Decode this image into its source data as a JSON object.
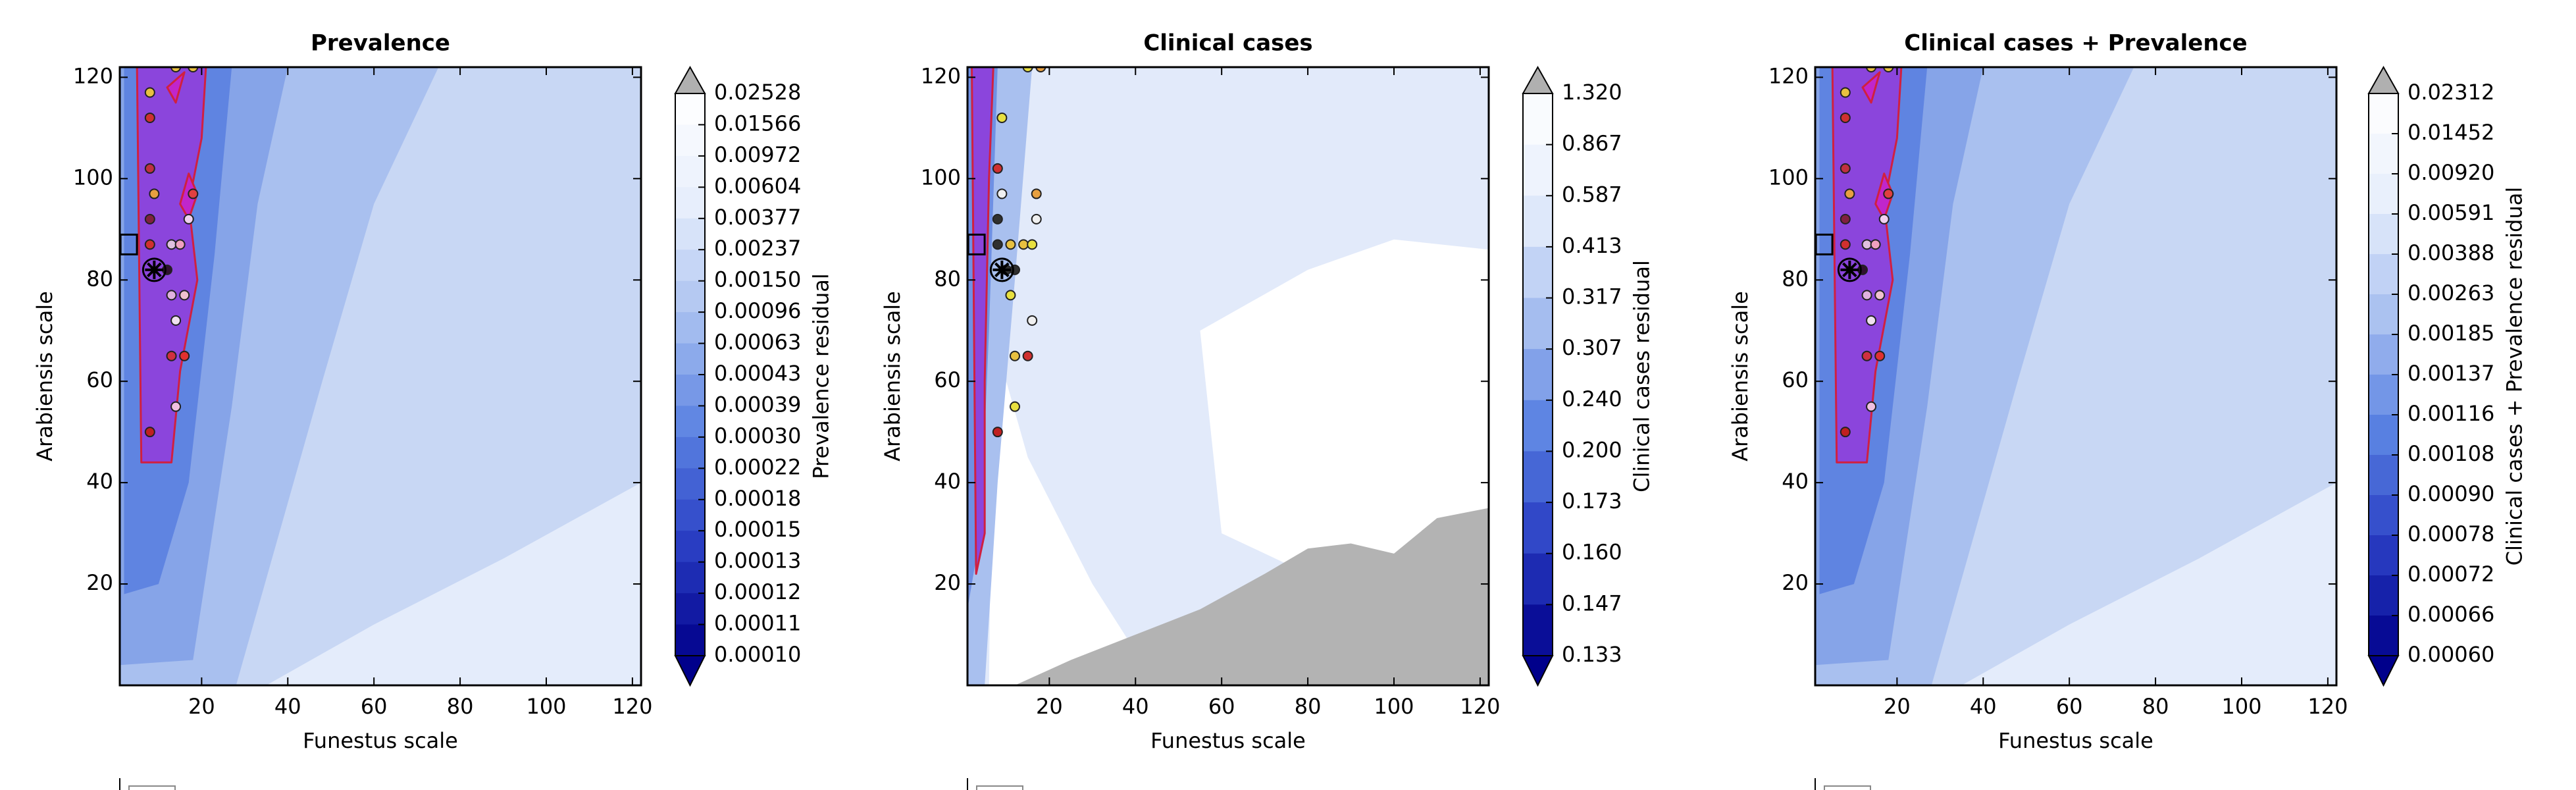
{
  "chart_data": [
    {
      "type": "contour",
      "title": "Prevalence",
      "x_label": "Funestus scale",
      "y_label": "Arabiensis scale",
      "xlim": [
        1,
        122
      ],
      "ylim": [
        0,
        122
      ],
      "xticks": [
        20,
        40,
        60,
        80,
        100,
        120
      ],
      "yticks": [
        20,
        40,
        60,
        80,
        100,
        120
      ],
      "points": {
        "x": [
          8,
          8,
          8,
          9,
          8,
          8,
          12,
          13,
          15,
          17,
          18,
          13,
          16,
          14,
          13,
          16,
          14,
          8,
          14,
          18
        ],
        "y": [
          117,
          112,
          102,
          97,
          92,
          87,
          82,
          87,
          87,
          92,
          97,
          77,
          77,
          72,
          65,
          65,
          55,
          50,
          122,
          122
        ],
        "colors": [
          "#e8c040",
          "#d03030",
          "#c03040",
          "#e8a040",
          "#802040",
          "#d03030",
          "#301030",
          "#e0c0e0",
          "#f0a0c0",
          "#f0d0f0",
          "#e04040",
          "#e0b0e0",
          "#f0c0d0",
          "#f0e0f0",
          "#d03040",
          "#e03030",
          "#f0c0e0",
          "#c02020",
          "#e8c040",
          "#e8c040"
        ]
      },
      "best_fit": {
        "x": 9,
        "y": 82
      },
      "reference": {
        "x": 3,
        "y": 87
      },
      "colorbar": {
        "label": "Prevalence residual",
        "ticks": [
          0.02528,
          0.01566,
          0.00972,
          0.00604,
          0.00377,
          0.00237,
          {
            "value": 0.0015,
            "label": "0.00150"
          },
          0.00096,
          0.00063,
          0.00043,
          0.00039,
          {
            "value": 0.0003,
            "label": "0.00030"
          },
          0.00022,
          0.00018,
          0.00015,
          0.00013,
          0.00012,
          0.00011,
          {
            "value": 0.0001,
            "label": "0.00010"
          }
        ],
        "colormap": [
          "#00008b",
          "#2a3fc4",
          "#5a82e2",
          "#a9c0f0",
          "#e6eefc",
          "#ffffff"
        ],
        "over_color": "#b0b0b0"
      }
    },
    {
      "type": "contour",
      "title": "Clinical cases",
      "x_label": "Funestus scale",
      "y_label": "Arabiensis scale",
      "xlim": [
        1,
        122
      ],
      "ylim": [
        0,
        122
      ],
      "xticks": [
        20,
        40,
        60,
        80,
        100,
        120
      ],
      "yticks": [
        20,
        40,
        60,
        80,
        100,
        120
      ],
      "points": {
        "x": [
          9,
          8,
          9,
          8,
          8,
          11,
          14,
          16,
          17,
          17,
          10,
          12,
          11,
          16,
          12,
          15,
          12,
          8,
          15,
          18
        ],
        "y": [
          112,
          102,
          97,
          92,
          87,
          87,
          87,
          87,
          97,
          92,
          82,
          82,
          77,
          72,
          65,
          65,
          55,
          50,
          122,
          122
        ],
        "colors": [
          "#e8e040",
          "#d03030",
          "#f0f0f0",
          "#303030",
          "#303030",
          "#e8c040",
          "#e8c040",
          "#e8e040",
          "#e8a040",
          "#f0f0f0",
          "#303030",
          "#303030",
          "#e8e040",
          "#f0f0f0",
          "#e8c040",
          "#d03030",
          "#e8e040",
          "#c02020",
          "#e8e040",
          "#e8a040"
        ]
      },
      "best_fit": {
        "x": 9,
        "y": 82
      },
      "reference": {
        "x": 3,
        "y": 87
      },
      "colorbar": {
        "label": "Clinical cases residual",
        "ticks": [
          {
            "value": 1.32,
            "label": "1.320"
          },
          0.867,
          0.587,
          0.413,
          0.317,
          0.307,
          {
            "value": 0.24,
            "label": "0.240"
          },
          {
            "value": 0.2,
            "label": "0.200"
          },
          0.173,
          {
            "value": 0.16,
            "label": "0.160"
          },
          0.147,
          0.133
        ],
        "colormap": [
          "#00008b",
          "#2a3fc4",
          "#5a82e2",
          "#a9c0f0",
          "#e6eefc",
          "#ffffff"
        ],
        "over_color": "#b0b0b0"
      }
    },
    {
      "type": "contour",
      "title": "Clinical cases + Prevalence",
      "x_label": "Funestus scale",
      "y_label": "Arabiensis scale",
      "xlim": [
        1,
        122
      ],
      "ylim": [
        0,
        122
      ],
      "xticks": [
        20,
        40,
        60,
        80,
        100,
        120
      ],
      "yticks": [
        20,
        40,
        60,
        80,
        100,
        120
      ],
      "points": {
        "x": [
          8,
          8,
          8,
          9,
          8,
          8,
          12,
          13,
          15,
          17,
          18,
          13,
          16,
          14,
          13,
          16,
          14,
          8,
          14,
          18
        ],
        "y": [
          117,
          112,
          102,
          97,
          92,
          87,
          82,
          87,
          87,
          92,
          97,
          77,
          77,
          72,
          65,
          65,
          55,
          50,
          122,
          122
        ],
        "colors": [
          "#e8c040",
          "#d03030",
          "#c03040",
          "#e8a040",
          "#802040",
          "#d03030",
          "#301030",
          "#e0c0e0",
          "#f0a0c0",
          "#f0d0f0",
          "#e04040",
          "#e0b0e0",
          "#f0c0d0",
          "#f0e0f0",
          "#d03040",
          "#e03030",
          "#f0c0e0",
          "#c02020",
          "#e8c040",
          "#e8c040"
        ]
      },
      "best_fit": {
        "x": 9,
        "y": 82
      },
      "reference": {
        "x": 3,
        "y": 87
      },
      "colorbar": {
        "label": "Clinical cases + Prevalence residual",
        "ticks": [
          0.02312,
          0.01452,
          {
            "value": 0.0092,
            "label": "0.00920"
          },
          0.00591,
          0.00388,
          0.00263,
          0.00185,
          0.00137,
          0.00116,
          0.00108,
          {
            "value": 0.0009,
            "label": "0.00090"
          },
          0.00078,
          0.00072,
          0.00066,
          {
            "value": 0.0006,
            "label": "0.00060"
          }
        ],
        "colormap": [
          "#00008b",
          "#2a3fc4",
          "#5a82e2",
          "#a9c0f0",
          "#e6eefc",
          "#ffffff"
        ],
        "over_color": "#b0b0b0"
      }
    }
  ]
}
